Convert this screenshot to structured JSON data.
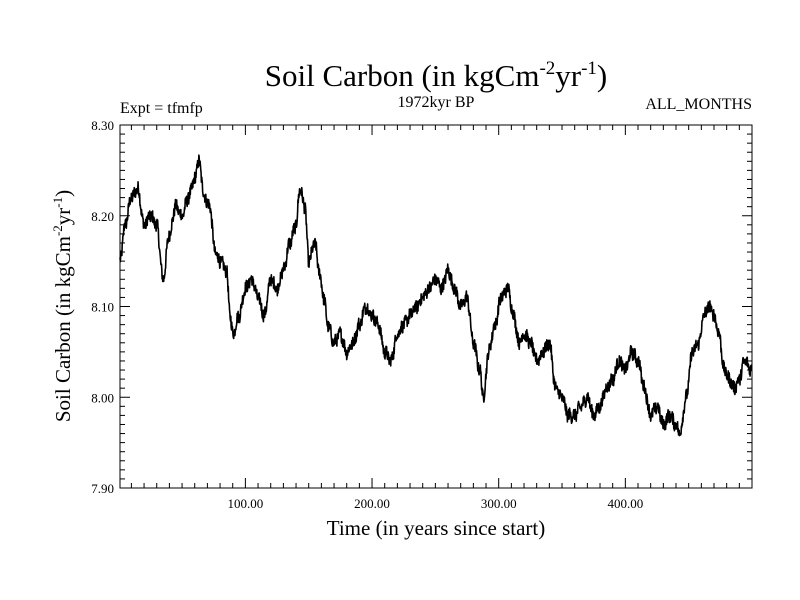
{
  "chart_data": {
    "type": "line",
    "title": {
      "main": "Soil Carbon (in kgCm",
      "exp1": "-2",
      "mid": "yr",
      "exp2": "-1",
      "end": ")"
    },
    "expt_label": "Expt = tfmfp",
    "period_label": "1972kyr BP",
    "months_label": "ALL_MONTHS",
    "xlabel": "Time (in years since start)",
    "ylabel": {
      "main": "Soil Carbon (in kgCm",
      "exp1": "-2",
      "mid": "yr",
      "exp2": "-1",
      "end": ")"
    },
    "xlim": [
      1,
      500
    ],
    "ylim": [
      7.9,
      8.3
    ],
    "x_ticks": [
      100,
      200,
      300,
      400
    ],
    "x_tick_labels": [
      "100.00",
      "200.00",
      "300.00",
      "400.00"
    ],
    "y_ticks": [
      7.9,
      8.0,
      8.1,
      8.2,
      8.3
    ],
    "y_tick_labels": [
      "7.90",
      "8.00",
      "8.10",
      "8.20",
      "8.30"
    ],
    "series": [
      {
        "name": "Soil Carbon",
        "x": [
          1,
          5,
          10,
          15,
          20,
          25,
          30,
          35,
          40,
          45,
          50,
          55,
          60,
          63,
          68,
          72,
          76,
          80,
          85,
          88,
          90,
          95,
          100,
          105,
          110,
          115,
          120,
          125,
          130,
          135,
          140,
          143,
          147,
          150,
          155,
          158,
          162,
          165,
          170,
          175,
          180,
          185,
          190,
          195,
          200,
          205,
          210,
          215,
          220,
          225,
          230,
          235,
          240,
          245,
          250,
          255,
          260,
          265,
          270,
          275,
          280,
          285,
          288,
          292,
          297,
          302,
          307,
          312,
          316,
          320,
          325,
          330,
          335,
          340,
          345,
          350,
          355,
          360,
          365,
          370,
          375,
          380,
          385,
          390,
          395,
          400,
          405,
          410,
          415,
          420,
          425,
          430,
          435,
          440,
          443,
          448,
          453,
          458,
          462,
          466,
          470,
          474,
          478,
          482,
          486,
          490,
          494,
          500
        ],
        "y": [
          8.15,
          8.19,
          8.22,
          8.23,
          8.19,
          8.2,
          8.19,
          8.13,
          8.18,
          8.21,
          8.2,
          8.22,
          8.24,
          8.26,
          8.22,
          8.21,
          8.16,
          8.15,
          8.14,
          8.09,
          8.07,
          8.09,
          8.12,
          8.13,
          8.11,
          8.09,
          8.13,
          8.12,
          8.14,
          8.17,
          8.19,
          8.23,
          8.21,
          8.15,
          8.17,
          8.14,
          8.11,
          8.08,
          8.06,
          8.07,
          8.05,
          8.06,
          8.08,
          8.1,
          8.09,
          8.08,
          8.05,
          8.04,
          8.07,
          8.08,
          8.09,
          8.1,
          8.11,
          8.12,
          8.13,
          8.12,
          8.14,
          8.12,
          8.1,
          8.11,
          8.06,
          8.03,
          8.0,
          8.05,
          8.08,
          8.11,
          8.12,
          8.09,
          8.06,
          8.07,
          8.06,
          8.04,
          8.05,
          8.06,
          8.01,
          8.0,
          7.98,
          7.98,
          7.99,
          8.0,
          7.98,
          7.99,
          8.01,
          8.02,
          8.04,
          8.03,
          8.05,
          8.04,
          8.01,
          7.98,
          7.99,
          7.97,
          7.98,
          7.97,
          7.96,
          8.0,
          8.05,
          8.06,
          8.09,
          8.1,
          8.09,
          8.07,
          8.03,
          8.02,
          8.01,
          8.02,
          8.04,
          8.03
        ]
      }
    ]
  }
}
